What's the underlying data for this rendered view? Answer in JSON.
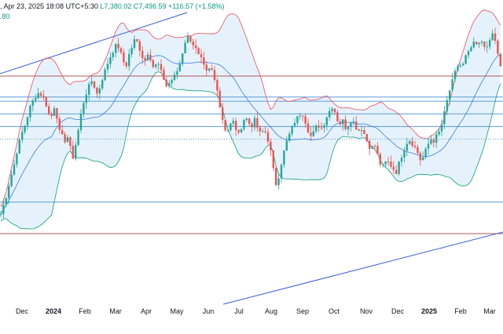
{
  "header": {
    "line1_prefix": ", Apr 23, 2025 18:08 UTC+5:30",
    "line1_low": "L7,380.02",
    "line1_close": "C7,496.59",
    "line1_change": "+116.57 (+1.58%)",
    "line2_value": ".80"
  },
  "colors": {
    "up_candle": "#26a69a",
    "down_candle": "#ef5350",
    "upper_band": "#ef4b57",
    "lower_band": "#0f9d78",
    "middle_band": "#3e79e6",
    "band_fill": "#dceef9",
    "trendline": "#3b5bd6",
    "resistance_line": "#b05858",
    "support_line": "#5b9bd5"
  },
  "chart_data": {
    "type": "candlestick",
    "title": "",
    "xlabel": "",
    "ylabel": "",
    "x_ticks": [
      {
        "label": "Dec",
        "bold": false
      },
      {
        "label": "2024",
        "bold": true
      },
      {
        "label": "Feb",
        "bold": false
      },
      {
        "label": "Mar",
        "bold": false
      },
      {
        "label": "Apr",
        "bold": false
      },
      {
        "label": "May",
        "bold": false
      },
      {
        "label": "Jun",
        "bold": false
      },
      {
        "label": "Jul",
        "bold": false
      },
      {
        "label": "Aug",
        "bold": false
      },
      {
        "label": "Sep",
        "bold": false
      },
      {
        "label": "Oct",
        "bold": false
      },
      {
        "label": "Nov",
        "bold": false
      },
      {
        "label": "Dec",
        "bold": false
      },
      {
        "label": "2025",
        "bold": true
      },
      {
        "label": "Feb",
        "bold": false
      },
      {
        "label": "Mar",
        "bold": false
      }
    ],
    "close_path": [
      [
        0,
        0.08
      ],
      [
        3,
        0.12
      ],
      [
        8,
        0.18
      ],
      [
        13,
        0.26
      ],
      [
        18,
        0.33
      ],
      [
        22,
        0.4
      ],
      [
        27,
        0.47
      ],
      [
        33,
        0.53
      ],
      [
        38,
        0.6
      ],
      [
        43,
        0.64
      ],
      [
        48,
        0.67
      ],
      [
        53,
        0.66
      ],
      [
        57,
        0.64
      ],
      [
        61,
        0.58
      ],
      [
        64,
        0.55
      ],
      [
        67,
        0.57
      ],
      [
        70,
        0.62
      ],
      [
        73,
        0.54
      ],
      [
        76,
        0.48
      ],
      [
        80,
        0.46
      ],
      [
        83,
        0.44
      ],
      [
        86,
        0.46
      ],
      [
        90,
        0.4
      ],
      [
        93,
        0.36
      ],
      [
        96,
        0.42
      ],
      [
        100,
        0.5
      ],
      [
        104,
        0.59
      ],
      [
        108,
        0.65
      ],
      [
        112,
        0.69
      ],
      [
        116,
        0.73
      ],
      [
        120,
        0.7
      ],
      [
        124,
        0.66
      ],
      [
        128,
        0.71
      ],
      [
        132,
        0.76
      ],
      [
        136,
        0.8
      ],
      [
        140,
        0.84
      ],
      [
        144,
        0.87
      ],
      [
        148,
        0.9
      ],
      [
        152,
        0.88
      ],
      [
        156,
        0.83
      ],
      [
        160,
        0.79
      ],
      [
        164,
        0.85
      ],
      [
        168,
        0.89
      ],
      [
        172,
        0.93
      ],
      [
        176,
        0.9
      ],
      [
        180,
        0.85
      ],
      [
        184,
        0.82
      ],
      [
        188,
        0.86
      ],
      [
        192,
        0.83
      ],
      [
        196,
        0.78
      ],
      [
        200,
        0.82
      ],
      [
        204,
        0.78
      ],
      [
        208,
        0.74
      ],
      [
        212,
        0.7
      ],
      [
        216,
        0.72
      ],
      [
        220,
        0.74
      ],
      [
        224,
        0.76
      ],
      [
        228,
        0.8
      ],
      [
        232,
        0.86
      ],
      [
        236,
        0.92
      ],
      [
        240,
        0.94
      ],
      [
        244,
        0.91
      ],
      [
        248,
        0.89
      ],
      [
        252,
        0.85
      ],
      [
        256,
        0.83
      ],
      [
        260,
        0.79
      ],
      [
        264,
        0.76
      ],
      [
        268,
        0.8
      ],
      [
        272,
        0.74
      ],
      [
        276,
        0.7
      ],
      [
        280,
        0.6
      ],
      [
        284,
        0.53
      ],
      [
        288,
        0.48
      ],
      [
        292,
        0.51
      ],
      [
        296,
        0.54
      ],
      [
        300,
        0.5
      ],
      [
        304,
        0.47
      ],
      [
        308,
        0.52
      ],
      [
        312,
        0.56
      ],
      [
        316,
        0.53
      ],
      [
        320,
        0.51
      ],
      [
        324,
        0.54
      ],
      [
        328,
        0.5
      ],
      [
        332,
        0.47
      ],
      [
        336,
        0.5
      ],
      [
        340,
        0.46
      ],
      [
        344,
        0.4
      ],
      [
        348,
        0.3
      ],
      [
        352,
        0.22
      ],
      [
        356,
        0.3
      ],
      [
        360,
        0.37
      ],
      [
        364,
        0.43
      ],
      [
        368,
        0.47
      ],
      [
        372,
        0.51
      ],
      [
        376,
        0.54
      ],
      [
        380,
        0.56
      ],
      [
        384,
        0.58
      ],
      [
        388,
        0.54
      ],
      [
        392,
        0.49
      ],
      [
        396,
        0.46
      ],
      [
        400,
        0.49
      ],
      [
        404,
        0.52
      ],
      [
        408,
        0.5
      ],
      [
        412,
        0.52
      ],
      [
        416,
        0.56
      ],
      [
        420,
        0.59
      ],
      [
        424,
        0.61
      ],
      [
        428,
        0.55
      ],
      [
        432,
        0.52
      ],
      [
        436,
        0.54
      ],
      [
        440,
        0.5
      ],
      [
        444,
        0.52
      ],
      [
        448,
        0.55
      ],
      [
        452,
        0.51
      ],
      [
        456,
        0.49
      ],
      [
        460,
        0.5
      ],
      [
        464,
        0.47
      ],
      [
        468,
        0.43
      ],
      [
        472,
        0.4
      ],
      [
        476,
        0.43
      ],
      [
        480,
        0.38
      ],
      [
        484,
        0.33
      ],
      [
        488,
        0.32
      ],
      [
        492,
        0.35
      ],
      [
        496,
        0.33
      ],
      [
        500,
        0.31
      ],
      [
        504,
        0.29
      ],
      [
        508,
        0.34
      ],
      [
        512,
        0.38
      ],
      [
        516,
        0.42
      ],
      [
        520,
        0.45
      ],
      [
        524,
        0.43
      ],
      [
        528,
        0.41
      ],
      [
        532,
        0.38
      ],
      [
        536,
        0.34
      ],
      [
        540,
        0.38
      ],
      [
        544,
        0.42
      ],
      [
        548,
        0.45
      ],
      [
        552,
        0.44
      ],
      [
        556,
        0.47
      ],
      [
        560,
        0.49
      ],
      [
        564,
        0.55
      ],
      [
        568,
        0.62
      ],
      [
        572,
        0.68
      ],
      [
        576,
        0.73
      ],
      [
        580,
        0.78
      ],
      [
        584,
        0.81
      ],
      [
        588,
        0.79
      ],
      [
        592,
        0.84
      ],
      [
        596,
        0.86
      ],
      [
        600,
        0.89
      ],
      [
        604,
        0.91
      ],
      [
        608,
        0.89
      ],
      [
        612,
        0.92
      ],
      [
        616,
        0.9
      ],
      [
        620,
        0.88
      ],
      [
        624,
        0.93
      ],
      [
        628,
        0.96
      ],
      [
        632,
        0.88
      ],
      [
        636,
        0.8
      ],
      [
        640,
        0.76
      ]
    ],
    "horizontal_lines": [
      {
        "level": 0.75,
        "kind": "resistance"
      },
      {
        "level": 0.65,
        "kind": "support"
      },
      {
        "level": 0.63,
        "kind": "support"
      },
      {
        "level": 0.57,
        "kind": "support"
      },
      {
        "level": 0.51,
        "kind": "support"
      },
      {
        "level": 0.45,
        "kind": "support-dotted"
      },
      {
        "level": 0.15,
        "kind": "support"
      },
      {
        "level": 0.0,
        "kind": "resistance"
      }
    ]
  }
}
